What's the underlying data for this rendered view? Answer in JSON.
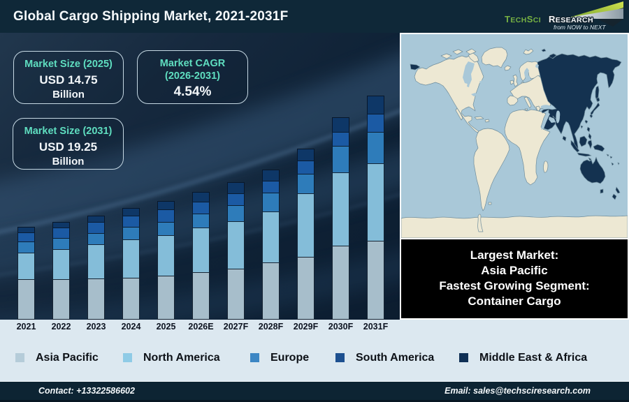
{
  "header": {
    "title": "Global Cargo Shipping Market, 2021-2031F",
    "logo": {
      "brand_primary": "TechSci",
      "brand_secondary": "Research",
      "tagline": "from NOW to NEXT",
      "brand_green": "#76b043"
    }
  },
  "info_boxes": [
    {
      "label": "Market Size (2025)",
      "value": "USD 14.75",
      "unit": "Billion"
    },
    {
      "label": "Market CAGR",
      "label_line2": "(2026-2031)",
      "value": "4.54%"
    },
    {
      "label": "Market Size (2031)",
      "value": "USD 19.25",
      "unit": "Billion"
    }
  ],
  "callout": {
    "lines": [
      "Largest Market:",
      "Asia Pacific",
      "Fastest Growing Segment:",
      "Container Cargo"
    ]
  },
  "map": {
    "highlighted_region": "Asia Pacific",
    "highlight_color": "#143250",
    "land_color": "#ede8d3",
    "ocean_color": "#a9c8d8"
  },
  "chart_data": {
    "type": "bar",
    "stacked": true,
    "title": "Global Cargo Shipping Market, 2021-2031F",
    "xlabel": "",
    "ylabel": "",
    "value_axis_shown": false,
    "units": "relative height units (infographic has no value axis)",
    "categories": [
      "2021",
      "2022",
      "2023",
      "2024",
      "2025",
      "2026E",
      "2027F",
      "2028F",
      "2029F",
      "2030F",
      "2031F"
    ],
    "series": [
      {
        "name": "Asia Pacific",
        "color": "#a7becb",
        "legend_color": "#b5ccd9",
        "values": [
          58,
          58,
          59,
          60,
          63,
          68,
          73,
          82,
          90,
          106,
          113
        ]
      },
      {
        "name": "North America",
        "color": "#84bdd9",
        "legend_color": "#8fcbe6",
        "values": [
          38,
          43,
          49,
          55,
          58,
          64,
          68,
          73,
          91,
          105,
          111
        ]
      },
      {
        "name": "Europe",
        "color": "#2e7cba",
        "legend_color": "#3c86c4",
        "values": [
          16,
          16,
          16,
          18,
          19,
          20,
          23,
          27,
          28,
          38,
          45
        ]
      },
      {
        "name": "South America",
        "color": "#1b5aa4",
        "legend_color": "#1d5090",
        "values": [
          13,
          15,
          16,
          16,
          18,
          17,
          17,
          17,
          19,
          20,
          26
        ]
      },
      {
        "name": "Middle East & Africa",
        "color": "#0e3767",
        "legend_color": "#0f3055",
        "values": [
          8,
          8,
          9,
          11,
          12,
          14,
          16,
          16,
          17,
          21,
          26
        ]
      }
    ],
    "annotations": {
      "market_size_2025_usd_billion": 14.75,
      "market_size_2031_usd_billion": 19.25,
      "cagr_2026_2031_percent": 4.54,
      "largest_market": "Asia Pacific",
      "fastest_growing_segment": "Container Cargo"
    },
    "legend_position": "bottom"
  },
  "footer": {
    "contact": "Contact: +13322586602",
    "email": "Email: sales@techsciresearch.com"
  }
}
